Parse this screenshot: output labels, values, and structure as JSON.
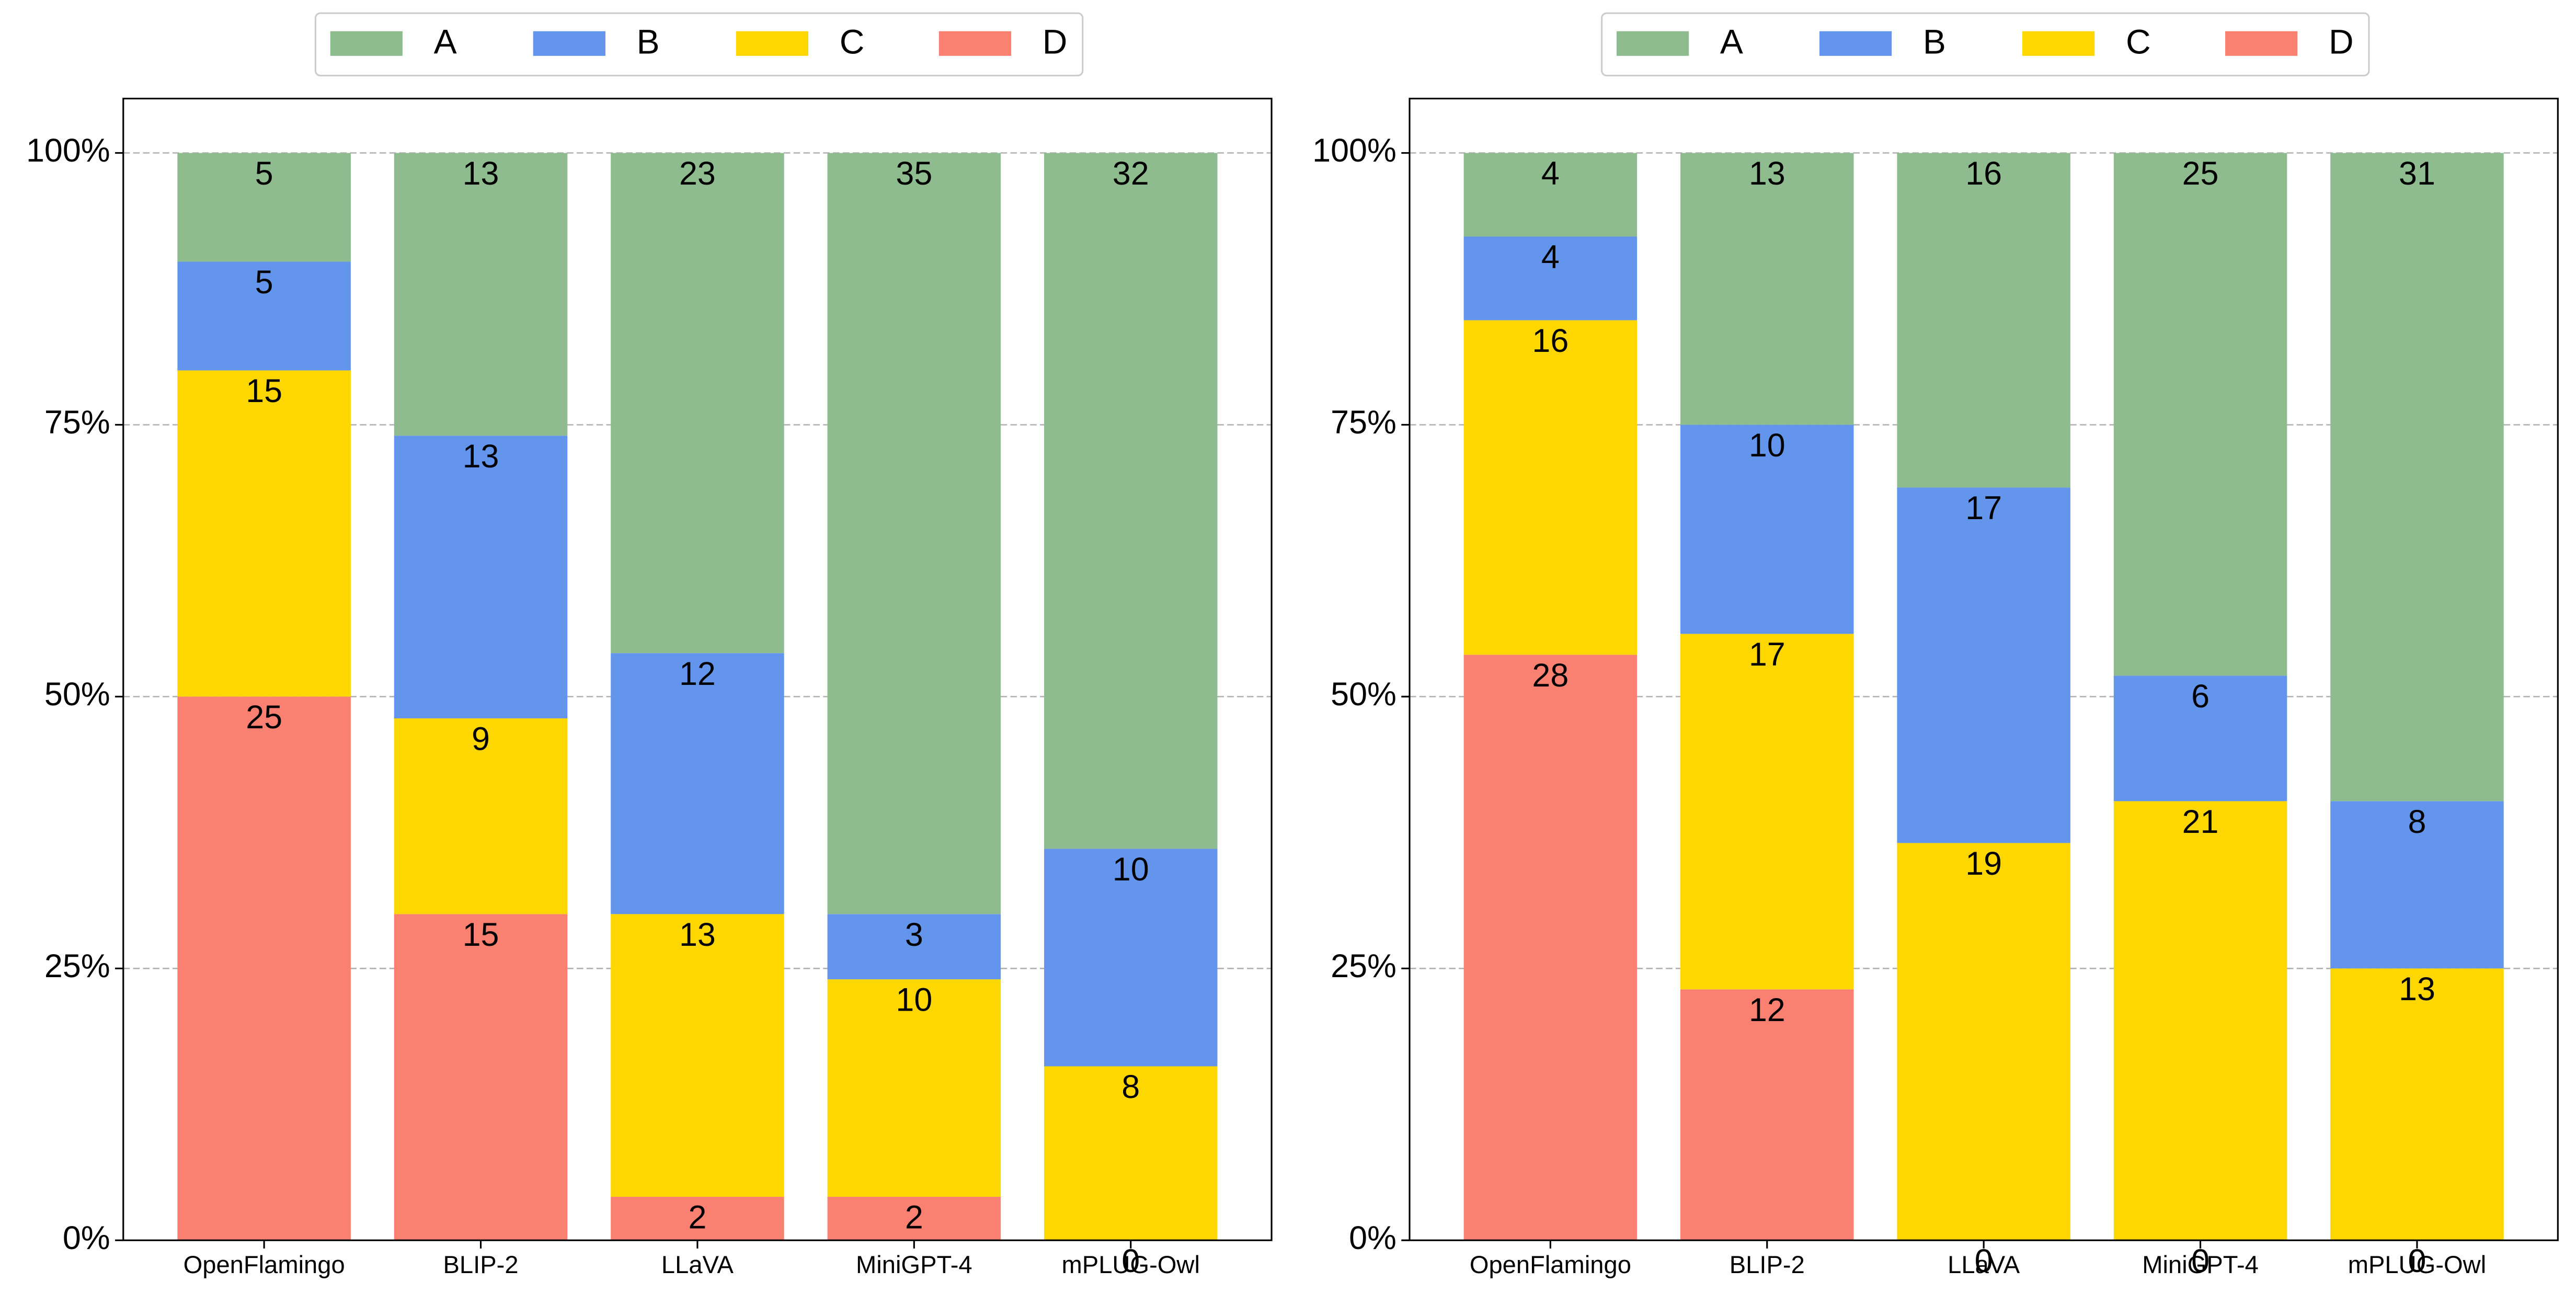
{
  "chart_data": [
    {
      "type": "stacked_percent_bar",
      "categories": [
        "OpenFlamingo",
        "BLIP-2",
        "LLaVA",
        "MiniGPT-4",
        "mPLUG-Owl"
      ],
      "series": [
        {
          "name": "A",
          "color": "#8fbc8f",
          "values": [
            5,
            13,
            23,
            35,
            32
          ]
        },
        {
          "name": "B",
          "color": "#6495ed",
          "values": [
            5,
            13,
            12,
            3,
            10
          ]
        },
        {
          "name": "C",
          "color": "#ffd700",
          "values": [
            15,
            9,
            13,
            10,
            8
          ]
        },
        {
          "name": "D",
          "color": "#fa8072",
          "values": [
            25,
            15,
            2,
            2,
            0
          ]
        }
      ],
      "ylim": [
        0,
        105
      ],
      "yticks": [
        {
          "value": 0,
          "label": "0%"
        },
        {
          "value": 25,
          "label": "25%"
        },
        {
          "value": 50,
          "label": "50%"
        },
        {
          "value": 75,
          "label": "75%"
        },
        {
          "value": 100,
          "label": "100%"
        }
      ],
      "grid": true,
      "legend": "top"
    },
    {
      "type": "stacked_percent_bar",
      "categories": [
        "OpenFlamingo",
        "BLIP-2",
        "LLaVA",
        "MiniGPT-4",
        "mPLUG-Owl"
      ],
      "series": [
        {
          "name": "A",
          "color": "#8fbc8f",
          "values": [
            4,
            13,
            16,
            25,
            31
          ]
        },
        {
          "name": "B",
          "color": "#6495ed",
          "values": [
            4,
            10,
            17,
            6,
            8
          ]
        },
        {
          "name": "C",
          "color": "#ffd700",
          "values": [
            16,
            17,
            19,
            21,
            13
          ]
        },
        {
          "name": "D",
          "color": "#fa8072",
          "values": [
            28,
            12,
            0,
            0,
            0
          ]
        }
      ],
      "ylim": [
        0,
        105
      ],
      "yticks": [
        {
          "value": 0,
          "label": "0%"
        },
        {
          "value": 25,
          "label": "25%"
        },
        {
          "value": 50,
          "label": "50%"
        },
        {
          "value": 75,
          "label": "75%"
        },
        {
          "value": 100,
          "label": "100%"
        }
      ],
      "grid": true,
      "legend": "top"
    }
  ]
}
